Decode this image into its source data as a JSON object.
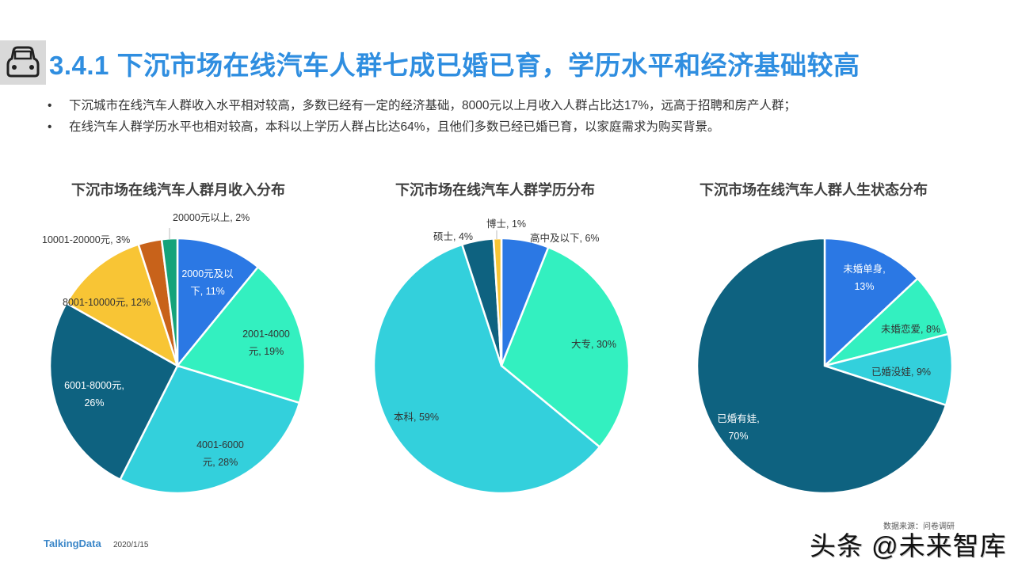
{
  "header": {
    "icon": "car-icon",
    "title": "3.4.1 下沉市场在线汽车人群七成已婚已育，学历水平和经济基础较高"
  },
  "bullets": [
    "下沉城市在线汽车人群收入水平相对较高，多数已经有一定的经济基础，8000元以上月收入人群占比达17%，远高于招聘和房产人群；",
    "在线汽车人群学历水平也相对较高，本科以上学历人群占比达64%，且他们多数已经已婚已育，以家庭需求为购买背景。"
  ],
  "bullet_symbol": "•",
  "chart_data": [
    {
      "type": "pie",
      "title": "下沉市场在线汽车人群月收入分布",
      "categories": [
        "2000元及以下",
        "2001-4000元",
        "4001-6000元",
        "6001-8000元",
        "8001-10000元",
        "10001-20000元",
        "20000元以上"
      ],
      "values": [
        11,
        19,
        28,
        26,
        12,
        3,
        2
      ],
      "unit": "%",
      "colors": [
        "#2b78e4",
        "#33f0c0",
        "#33d0dc",
        "#0e6280",
        "#f8c535",
        "#c8621a",
        "#14a37a"
      ],
      "labels": [
        {
          "line1": "2000元及以",
          "line2": "下, 11%"
        },
        {
          "line1": "2001-4000",
          "line2": "元, 19%"
        },
        {
          "line1": "4001-6000",
          "line2": "元, 28%"
        },
        {
          "line1": "6001-8000元,",
          "line2": "26%"
        },
        {
          "line1": "8001-10000元, 12%",
          "line2": ""
        },
        {
          "line1": "10001-20000元, 3%",
          "line2": ""
        },
        {
          "line1": "20000元以上, 2%",
          "line2": ""
        }
      ],
      "start_angle": "12 o'clock, clockwise"
    },
    {
      "type": "pie",
      "title": "下沉市场在线汽车人群学历分布",
      "categories": [
        "高中及以下",
        "大专",
        "本科",
        "硕士",
        "博士"
      ],
      "values": [
        6,
        30,
        59,
        4,
        1
      ],
      "unit": "%",
      "colors": [
        "#2b78e4",
        "#33f0c0",
        "#33d0dc",
        "#0e6280",
        "#f8c535"
      ],
      "labels": [
        {
          "line1": "高中及以下, 6%",
          "line2": ""
        },
        {
          "line1": "大专, 30%",
          "line2": ""
        },
        {
          "line1": "本科, 59%",
          "line2": ""
        },
        {
          "line1": "硕士, 4%",
          "line2": ""
        },
        {
          "line1": "博士, 1%",
          "line2": ""
        }
      ],
      "start_angle": "12 o'clock, clockwise"
    },
    {
      "type": "pie",
      "title": "下沉市场在线汽车人群人生状态分布",
      "categories": [
        "未婚单身",
        "未婚恋爱",
        "已婚没娃",
        "已婚有娃"
      ],
      "values": [
        13,
        8,
        9,
        70
      ],
      "unit": "%",
      "colors": [
        "#2b78e4",
        "#33f0c0",
        "#33d0dc",
        "#0e6280"
      ],
      "labels": [
        {
          "line1": "未婚单身,",
          "line2": "13%"
        },
        {
          "line1": "未婚恋爱, 8%",
          "line2": ""
        },
        {
          "line1": "已婚没娃, 9%",
          "line2": ""
        },
        {
          "line1": "已婚有娃,",
          "line2": "70%"
        }
      ],
      "start_angle": "12 o'clock, clockwise"
    }
  ],
  "footer": {
    "logo": "TalkingData",
    "date": "2020/1/15",
    "source": "数据来源：问卷调研",
    "watermark": "头条 @未来智库"
  }
}
